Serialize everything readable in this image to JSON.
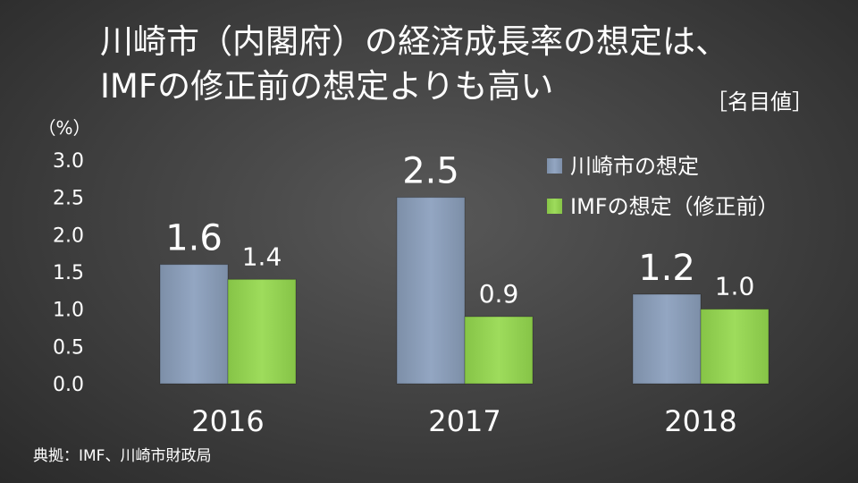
{
  "title_line1": "川崎市（内閣府）の経済成長率の想定は、",
  "title_line2": "IMFの修正前の想定よりも高い",
  "note": "［名目値］",
  "source": "典拠：IMF、川崎市財政局",
  "chart_data": {
    "type": "bar",
    "categories": [
      "2016",
      "2017",
      "2018"
    ],
    "series": [
      {
        "name": "川崎市の想定",
        "values": [
          1.6,
          2.5,
          1.2
        ],
        "labels": [
          "1.6",
          "2.5",
          "1.2"
        ],
        "color": "#8496b0"
      },
      {
        "name": "IMFの想定（修正前）",
        "values": [
          1.4,
          0.9,
          1.0
        ],
        "labels": [
          "1.4",
          "0.9",
          "1.0"
        ],
        "color": "#92d050"
      }
    ],
    "ylim": [
      0,
      3.0
    ],
    "ytick_labels": [
      "0.0",
      "0.5",
      "1.0",
      "1.5",
      "2.0",
      "2.5",
      "3.0"
    ],
    "y_unit": "（%）",
    "grid": false,
    "legend_position": "top-right"
  }
}
